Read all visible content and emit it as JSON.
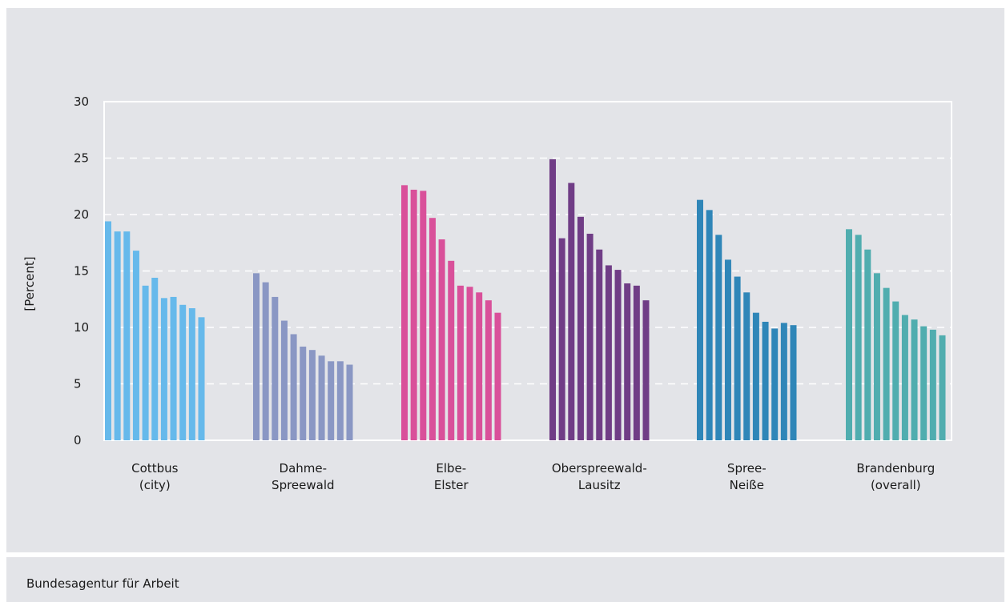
{
  "chart_data": {
    "type": "bar",
    "ylabel": "[Percent]",
    "ylim": [
      0,
      30
    ],
    "yticks": [
      0,
      5,
      10,
      15,
      20,
      25,
      30
    ],
    "grid": true,
    "groups": [
      {
        "label_lines": [
          "Cottbus",
          "(city)"
        ],
        "color": "#66b9eb",
        "values": [
          19.4,
          18.5,
          18.5,
          16.8,
          13.7,
          14.4,
          12.6,
          12.7,
          12.0,
          11.7,
          10.9
        ]
      },
      {
        "label_lines": [
          "Dahme-",
          "Spreewald"
        ],
        "color": "#8a97c4",
        "values": [
          14.8,
          14.0,
          12.7,
          10.6,
          9.4,
          8.3,
          8.0,
          7.5,
          7.0,
          7.0,
          6.7
        ]
      },
      {
        "label_lines": [
          "Elbe-",
          "Elster"
        ],
        "color": "#d9509a",
        "values": [
          22.6,
          22.2,
          22.1,
          19.7,
          17.8,
          15.9,
          13.7,
          13.6,
          13.1,
          12.4,
          11.3
        ]
      },
      {
        "label_lines": [
          "Oberspreewald-",
          "Lausitz"
        ],
        "color": "#703d86",
        "values": [
          24.9,
          17.9,
          22.8,
          19.8,
          18.3,
          16.9,
          15.5,
          15.1,
          13.9,
          13.7,
          12.4
        ]
      },
      {
        "label_lines": [
          "Spree-",
          "Neiße"
        ],
        "color": "#2f86b8",
        "values": [
          21.3,
          20.4,
          18.2,
          16.0,
          14.5,
          13.1,
          11.3,
          10.5,
          9.9,
          10.4,
          10.2
        ]
      },
      {
        "label_lines": [
          "Brandenburg",
          "(overall)"
        ],
        "color": "#50adaf",
        "values": [
          18.7,
          18.2,
          16.9,
          14.8,
          13.5,
          12.3,
          11.1,
          10.7,
          10.1,
          9.8,
          9.3
        ]
      }
    ]
  },
  "source": "Bundesagentur für Arbeit"
}
